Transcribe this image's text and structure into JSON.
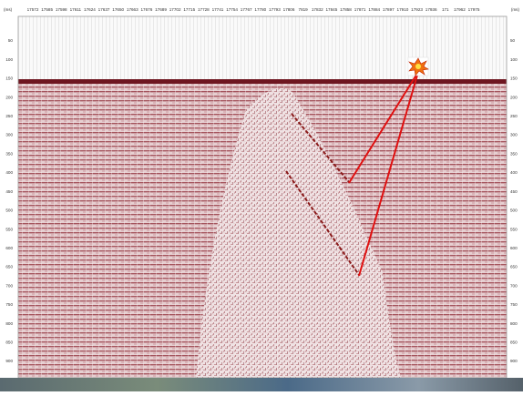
{
  "top_axis": {
    "left_unit": "(ms)",
    "right_unit": "(ms)",
    "labels": [
      "17572",
      "17585",
      "17598",
      "17611",
      "17624",
      "17637",
      "17650",
      "17663",
      "17676",
      "17689",
      "17702",
      "17715",
      "17728",
      "17741",
      "17754",
      "17767",
      "17780",
      "17793",
      "17806",
      "7819",
      "17832",
      "17845",
      "17858",
      "17871",
      "17884",
      "17897",
      "17910",
      "17923",
      "17936",
      "171",
      "17962",
      "17975"
    ]
  },
  "left_axis": {
    "labels": [
      "50",
      "100",
      "150",
      "200",
      "250",
      "300",
      "350",
      "400",
      "450",
      "500",
      "550",
      "600",
      "650",
      "700",
      "750",
      "800",
      "850",
      "900"
    ]
  },
  "right_axis": {
    "labels": [
      "50",
      "100",
      "150",
      "200",
      "250",
      "300",
      "350",
      "400",
      "450",
      "500",
      "550",
      "600",
      "650",
      "700",
      "750",
      "800",
      "850",
      "900"
    ]
  }
}
